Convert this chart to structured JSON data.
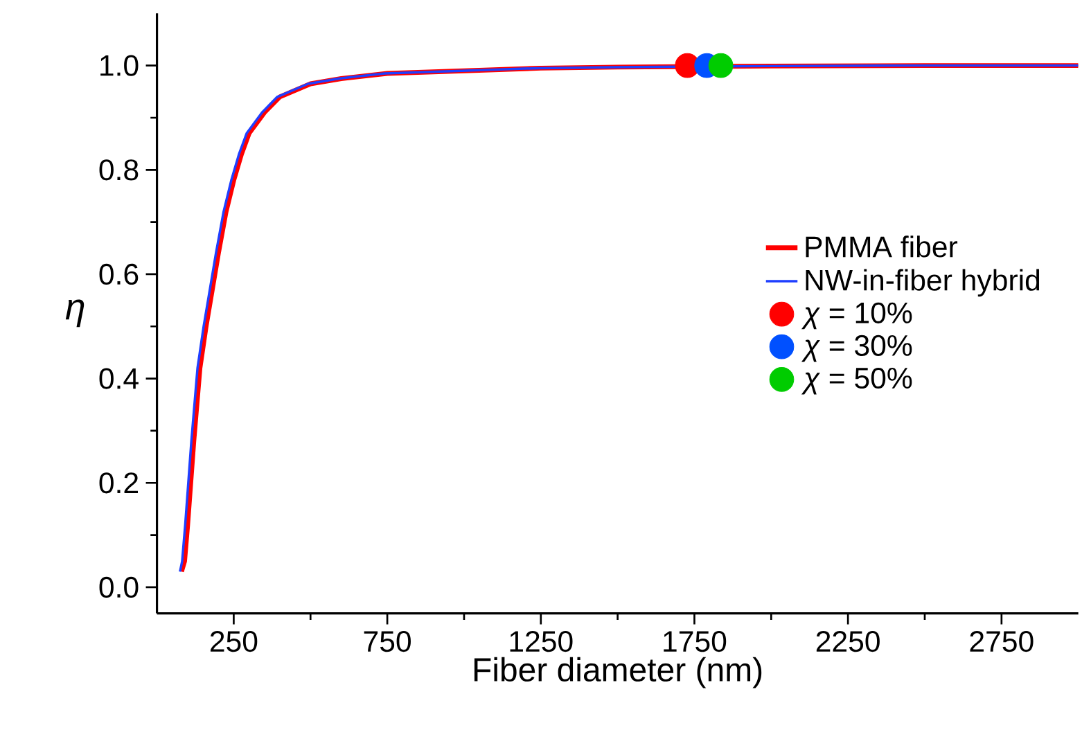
{
  "chart_data": {
    "type": "line",
    "xlabel": "Fiber diameter (nm)",
    "ylabel": "η",
    "xlim": [
      0,
      3000
    ],
    "ylim": [
      -0.05,
      1.1
    ],
    "xticks": [
      250,
      750,
      1250,
      1750,
      2250,
      2750
    ],
    "yticks": [
      {
        "value": 0,
        "label": "0.0"
      },
      0.2,
      0.4,
      0.6,
      0.8,
      {
        "value": 1,
        "label": "1.0"
      }
    ],
    "legend": "right",
    "grid": false,
    "series": [
      {
        "name": "PMMA fiber",
        "color": "#ff0000",
        "marker": "none",
        "x": [
          80,
          90,
          100,
          110,
          120,
          140,
          160,
          180,
          200,
          225,
          250,
          275,
          300,
          350,
          400,
          500,
          600,
          750,
          1000,
          1250,
          1500,
          2000,
          2500,
          3000
        ],
        "values": [
          0.03,
          0.05,
          0.12,
          0.2,
          0.28,
          0.42,
          0.5,
          0.57,
          0.64,
          0.72,
          0.78,
          0.83,
          0.87,
          0.91,
          0.94,
          0.965,
          0.975,
          0.985,
          0.99,
          0.995,
          0.997,
          0.999,
          1.0,
          1.0
        ]
      },
      {
        "name": "NW-in-fiber hybrid",
        "color": "#1f3fff",
        "marker": "none",
        "x": [
          75,
          82,
          92,
          102,
          112,
          132,
          152,
          172,
          192,
          217,
          242,
          267,
          292,
          342,
          392,
          492,
          592,
          742,
          992,
          1242,
          1492,
          1992,
          2492,
          3000
        ],
        "values": [
          0.03,
          0.05,
          0.12,
          0.2,
          0.28,
          0.42,
          0.5,
          0.57,
          0.64,
          0.72,
          0.78,
          0.83,
          0.87,
          0.91,
          0.94,
          0.965,
          0.975,
          0.985,
          0.99,
          0.995,
          0.997,
          0.999,
          1.0,
          1.0
        ]
      },
      {
        "name": "*χ* = 10%",
        "type": "scatter",
        "marker": "circle",
        "color": "#ff0000",
        "x": [
          1727
        ],
        "values": [
          1.0
        ]
      },
      {
        "name": "*χ* = 30%",
        "type": "scatter",
        "marker": "circle",
        "color": "#0050ff",
        "x": [
          1790
        ],
        "values": [
          1.0
        ]
      },
      {
        "name": "*χ* = 50%",
        "type": "scatter",
        "marker": "circle",
        "color": "#00cc00",
        "x": [
          1836
        ],
        "values": [
          1.0
        ]
      }
    ]
  }
}
